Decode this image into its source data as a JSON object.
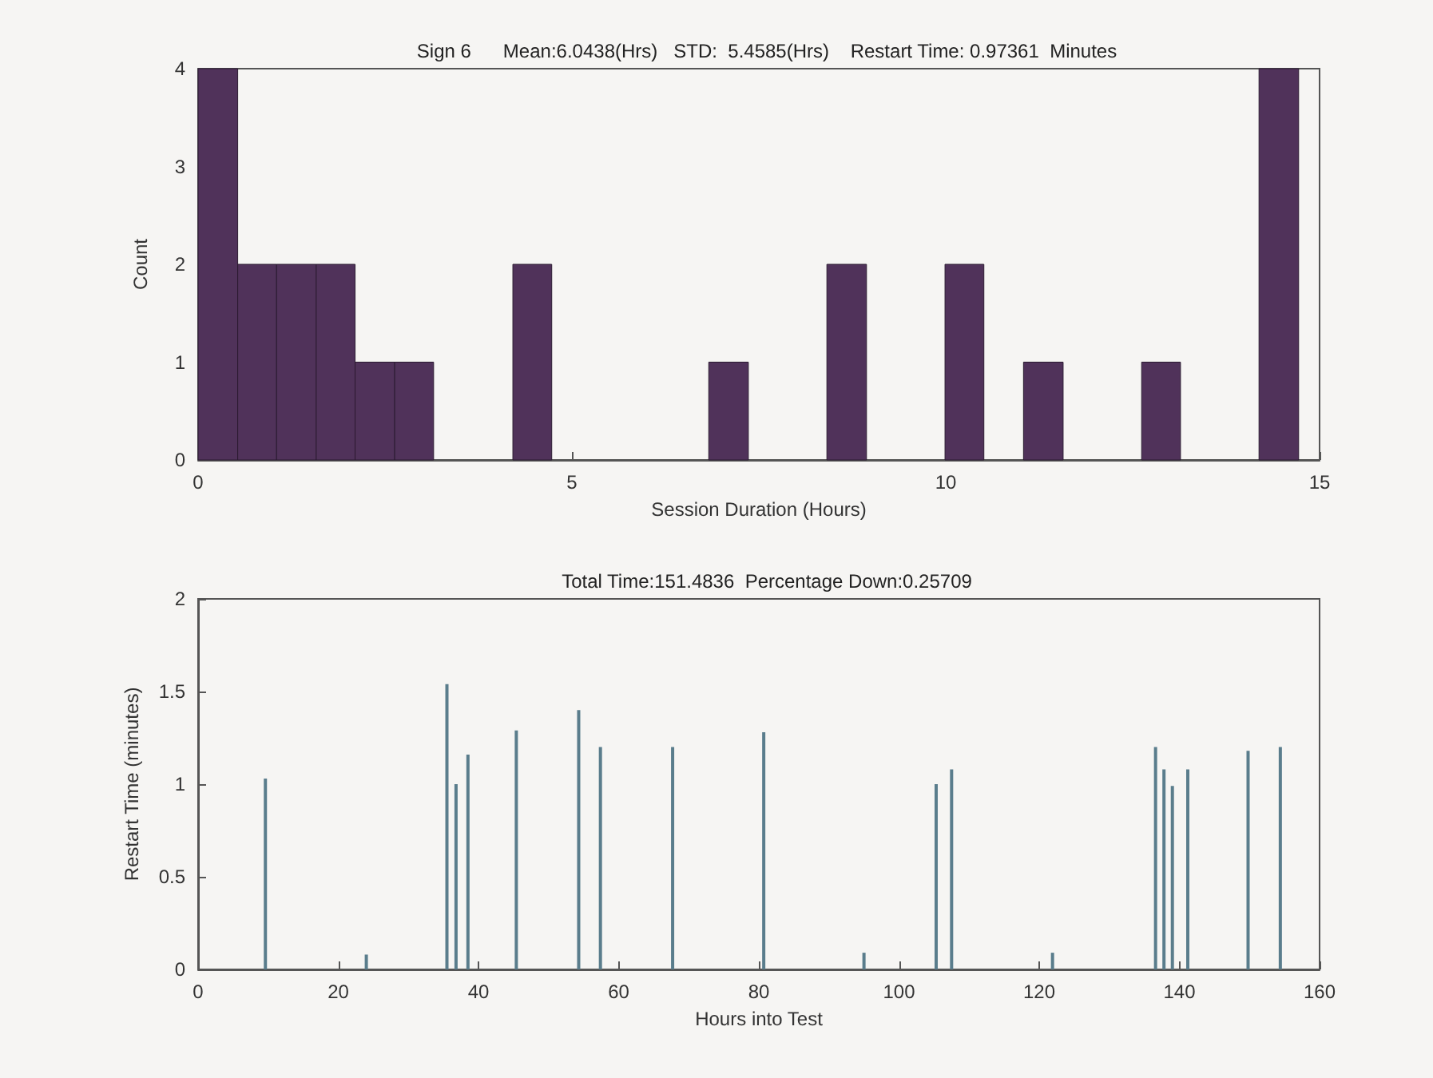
{
  "chart_data": [
    {
      "type": "histogram",
      "title": "Sign 6      Mean:6.0438(Hrs)   STD:  5.4585(Hrs)    Restart Time: 0.97361  Minutes",
      "xlabel": "Session Duration (Hours)",
      "ylabel": "Count",
      "color": "#50325a",
      "bins": [
        0,
        0.53,
        1.05,
        1.58,
        2.1,
        2.63,
        3.15,
        4.21,
        4.73,
        6.83,
        7.36,
        8.41,
        8.94,
        9.99,
        10.51,
        11.04,
        11.57,
        12.62,
        13.14,
        14.19,
        14.72
      ],
      "values": [
        4,
        2,
        2,
        2,
        1,
        1,
        0,
        2,
        0,
        1,
        0,
        2,
        0,
        2,
        0,
        1,
        0,
        1,
        0,
        4
      ],
      "xlim": [
        0,
        15
      ],
      "xticks": [
        0,
        5,
        10,
        15
      ],
      "ylim": [
        0,
        4
      ],
      "yticks": [
        0,
        1,
        2,
        3,
        4
      ]
    },
    {
      "type": "bar",
      "title": "Total Time:151.4836  Percentage Down:0.25709",
      "xlabel": "Hours into Test",
      "ylabel": "Restart Time (minutes)",
      "color": "#5a7d8c",
      "x": [
        9.6,
        24.0,
        35.5,
        36.8,
        38.5,
        45.4,
        54.3,
        57.4,
        67.7,
        80.7,
        95.0,
        105.3,
        107.5,
        121.9,
        136.6,
        137.8,
        139.0,
        141.2,
        149.8,
        154.4
      ],
      "values": [
        1.03,
        0.08,
        1.54,
        1.0,
        1.16,
        1.29,
        1.4,
        1.2,
        1.2,
        1.28,
        0.09,
        1.0,
        1.08,
        0.09,
        1.2,
        1.08,
        0.99,
        1.08,
        1.18,
        1.2
      ],
      "xlim": [
        0,
        160
      ],
      "xticks": [
        0,
        20,
        40,
        60,
        80,
        100,
        120,
        140,
        160
      ],
      "ylim": [
        0,
        2
      ],
      "yticks": [
        0,
        0.5,
        1,
        1.5,
        2
      ]
    }
  ]
}
